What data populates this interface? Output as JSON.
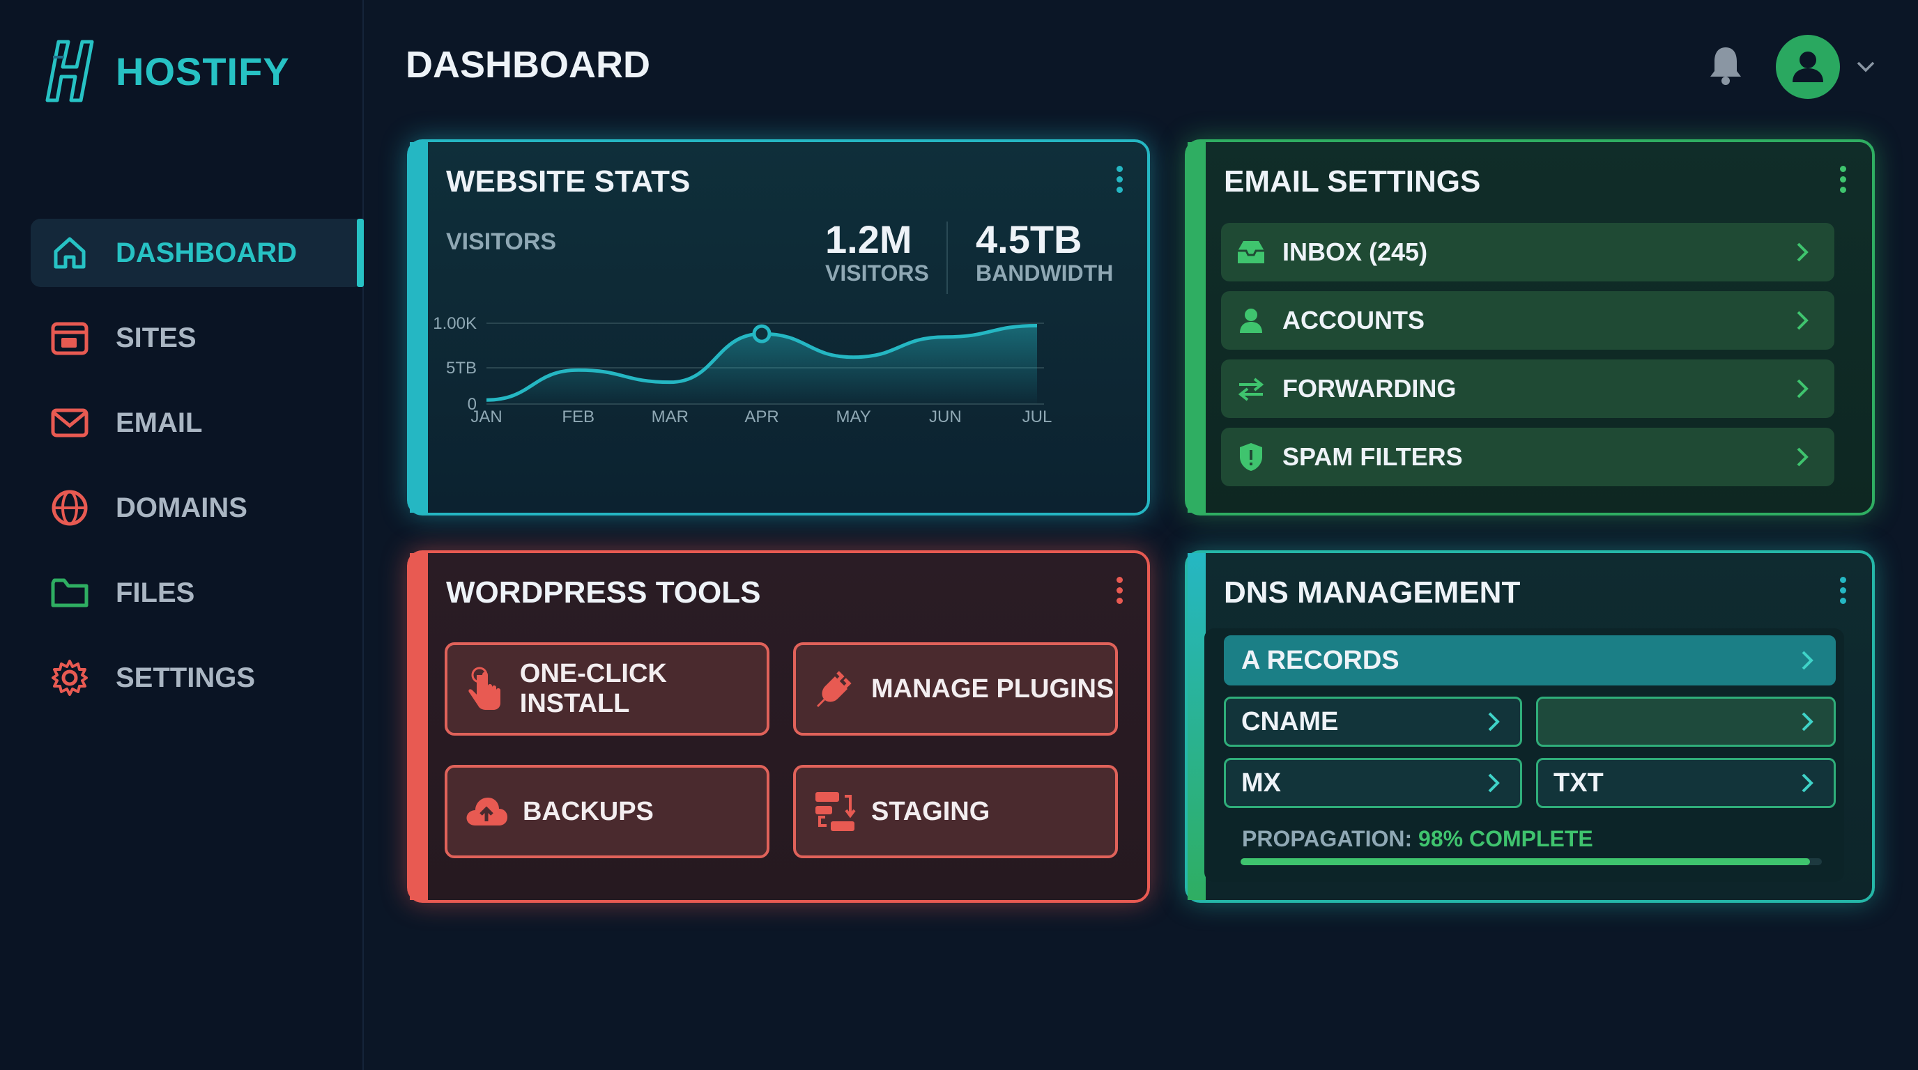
{
  "brand": {
    "name": "HOSTIFY",
    "accent": "#27c2c4"
  },
  "header": {
    "title": "DASHBOARD",
    "bell_icon": "bell-icon",
    "avatar_icon": "user-icon"
  },
  "sidebar": {
    "items": [
      {
        "label": "DASHBOARD",
        "icon": "home-icon",
        "active": true
      },
      {
        "label": "SITES",
        "icon": "browser-window-icon"
      },
      {
        "label": "EMAIL",
        "icon": "envelope-icon"
      },
      {
        "label": "DOMAINS",
        "icon": "globe-icon"
      },
      {
        "label": "FILES",
        "icon": "folder-icon"
      },
      {
        "label": "SETTINGS",
        "icon": "gear-icon"
      }
    ]
  },
  "stats": {
    "title": "WEBSITE STATS",
    "series_label": "VISITORS",
    "visitors_value": "1.2M",
    "visitors_caption": "VISITORS",
    "bandwidth_value": "4.5TB",
    "bandwidth_caption": "BANDWIDTH"
  },
  "chart_data": {
    "type": "area",
    "categories": [
      "JAN",
      "FEB",
      "MAR",
      "APR",
      "MAY",
      "JUN",
      "JUL"
    ],
    "y_tick_labels": [
      "0",
      "5TB",
      "1.00K"
    ],
    "values": [
      0.05,
      0.42,
      0.27,
      0.87,
      0.58,
      0.83,
      0.97
    ],
    "highlight_index": 3,
    "color": "#25b7c3",
    "grid": true
  },
  "email": {
    "title": "EMAIL SETTINGS",
    "rows": [
      {
        "label": "INBOX (245)",
        "icon": "inbox-icon"
      },
      {
        "label": "ACCOUNTS",
        "icon": "user-icon"
      },
      {
        "label": "FORWARDING",
        "icon": "arrows-swap-icon"
      },
      {
        "label": "SPAM FILTERS",
        "icon": "shield-alert-icon"
      }
    ]
  },
  "wordpress": {
    "title": "WORDPRESS TOOLS",
    "buttons": [
      {
        "label": "ONE-CLICK INSTALL",
        "icon": "tap-hand-icon"
      },
      {
        "label": "MANAGE PLUGINS",
        "icon": "plug-icon"
      },
      {
        "label": "BACKUPS",
        "icon": "cloud-upload-icon"
      },
      {
        "label": "STAGING",
        "icon": "servers-sync-icon"
      }
    ]
  },
  "dns": {
    "title": "DNS MANAGEMENT",
    "primary": "A RECORDS",
    "cname": "CNAME",
    "blank": "",
    "mx": "MX",
    "txt": "TXT",
    "propagation_label": "PROPAGATION:",
    "propagation_value": "98% COMPLETE",
    "propagation_progress": 0.98
  },
  "colors": {
    "teal": "#25b7c3",
    "green": "#2fae62",
    "red": "#e85a52"
  }
}
